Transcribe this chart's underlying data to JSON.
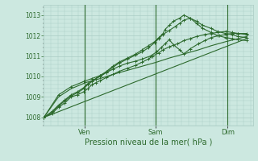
{
  "bg_color": "#cce8e0",
  "grid_color": "#aaccc4",
  "line_color": "#2d6a2d",
  "marker_color": "#2d6a2d",
  "xlabel": "Pression niveau de la mer( hPa )",
  "yticks": [
    1008,
    1009,
    1010,
    1011,
    1012,
    1013
  ],
  "ylim": [
    1007.6,
    1013.5
  ],
  "xlim": [
    0,
    1.0
  ],
  "lines": [
    {
      "x": [
        0.0,
        0.04,
        0.07,
        0.1,
        0.13,
        0.16,
        0.19,
        0.21,
        0.23,
        0.25,
        0.27,
        0.3,
        0.33,
        0.36,
        0.4,
        0.44,
        0.47,
        0.5,
        0.52,
        0.55,
        0.57,
        0.6,
        0.64,
        0.67,
        0.7,
        0.73,
        0.77,
        0.8,
        0.83,
        0.87,
        0.9,
        0.93,
        0.97
      ],
      "y": [
        1008.0,
        1008.2,
        1008.5,
        1008.7,
        1009.0,
        1009.1,
        1009.25,
        1009.4,
        1009.6,
        1009.7,
        1009.8,
        1009.95,
        1010.1,
        1010.25,
        1010.4,
        1010.55,
        1010.7,
        1010.85,
        1011.0,
        1011.15,
        1011.3,
        1011.45,
        1011.6,
        1011.75,
        1011.85,
        1011.95,
        1012.05,
        1012.1,
        1012.15,
        1012.2,
        1012.15,
        1012.1,
        1012.05
      ],
      "marker": true,
      "lw": 0.8
    },
    {
      "x": [
        0.0,
        0.04,
        0.07,
        0.1,
        0.13,
        0.16,
        0.19,
        0.21,
        0.23,
        0.25,
        0.27,
        0.3,
        0.33,
        0.36,
        0.4,
        0.44,
        0.47,
        0.5,
        0.53,
        0.55,
        0.57,
        0.6,
        0.63,
        0.65,
        0.67,
        0.7,
        0.73,
        0.76,
        0.8,
        0.83,
        0.87,
        0.9,
        0.93,
        0.97
      ],
      "y": [
        1008.0,
        1008.25,
        1008.55,
        1008.8,
        1009.05,
        1009.2,
        1009.4,
        1009.6,
        1009.75,
        1009.9,
        1010.0,
        1010.2,
        1010.45,
        1010.65,
        1010.85,
        1011.05,
        1011.2,
        1011.4,
        1011.65,
        1011.85,
        1012.05,
        1012.25,
        1012.45,
        1012.6,
        1012.75,
        1012.85,
        1012.7,
        1012.5,
        1012.35,
        1012.2,
        1012.1,
        1012.05,
        1011.95,
        1011.9
      ],
      "marker": true,
      "lw": 0.8
    },
    {
      "x": [
        0.0,
        0.04,
        0.07,
        0.1,
        0.13,
        0.16,
        0.19,
        0.21,
        0.23,
        0.25,
        0.27,
        0.3,
        0.33,
        0.36,
        0.4,
        0.44,
        0.47,
        0.5,
        0.53,
        0.55,
        0.57,
        0.58,
        0.6,
        0.62,
        0.65,
        0.67,
        0.7,
        0.73,
        0.76,
        0.8,
        0.83,
        0.87,
        0.9,
        0.93,
        0.97
      ],
      "y": [
        1008.0,
        1008.3,
        1008.6,
        1008.85,
        1009.1,
        1009.25,
        1009.45,
        1009.65,
        1009.8,
        1009.9,
        1010.05,
        1010.25,
        1010.5,
        1010.7,
        1010.9,
        1011.1,
        1011.3,
        1011.5,
        1011.7,
        1011.9,
        1012.1,
        1012.3,
        1012.5,
        1012.7,
        1012.85,
        1013.0,
        1012.85,
        1012.6,
        1012.35,
        1012.15,
        1012.0,
        1011.9,
        1011.85,
        1011.8,
        1011.75
      ],
      "marker": true,
      "lw": 0.8
    },
    {
      "x": [
        0.0,
        0.07,
        0.13,
        0.19,
        0.23,
        0.27,
        0.3,
        0.33,
        0.36,
        0.4,
        0.44,
        0.47,
        0.51,
        0.54,
        0.56,
        0.58,
        0.6,
        0.62,
        0.65,
        0.67,
        0.7,
        0.74,
        0.77,
        0.8,
        0.84,
        0.87,
        0.9,
        0.93,
        0.97
      ],
      "y": [
        1008.0,
        1009.1,
        1009.5,
        1009.75,
        1009.9,
        1010.05,
        1010.2,
        1010.35,
        1010.5,
        1010.65,
        1010.75,
        1010.85,
        1011.0,
        1011.2,
        1011.4,
        1011.6,
        1011.8,
        1011.55,
        1011.3,
        1011.1,
        1011.35,
        1011.6,
        1011.75,
        1011.9,
        1012.0,
        1012.05,
        1012.1,
        1012.1,
        1012.1
      ],
      "marker": true,
      "lw": 0.8
    },
    {
      "x": [
        0.0,
        0.07,
        0.13,
        0.2,
        0.27,
        0.33,
        0.4,
        0.47,
        0.54,
        0.6,
        0.67,
        0.74,
        0.8,
        0.87,
        0.93,
        0.97
      ],
      "y": [
        1008.0,
        1009.0,
        1009.4,
        1009.7,
        1009.9,
        1010.1,
        1010.3,
        1010.5,
        1010.7,
        1010.9,
        1011.1,
        1011.3,
        1011.5,
        1011.7,
        1011.85,
        1011.95
      ],
      "marker": false,
      "lw": 0.8
    },
    {
      "x": [
        0.0,
        0.97
      ],
      "y": [
        1008.0,
        1011.85
      ],
      "marker": false,
      "lw": 0.8
    }
  ],
  "vlines": [
    0.195,
    0.535,
    0.88
  ],
  "vline_color": "#2d6a2d",
  "figsize": [
    3.2,
    2.0
  ],
  "dpi": 100
}
